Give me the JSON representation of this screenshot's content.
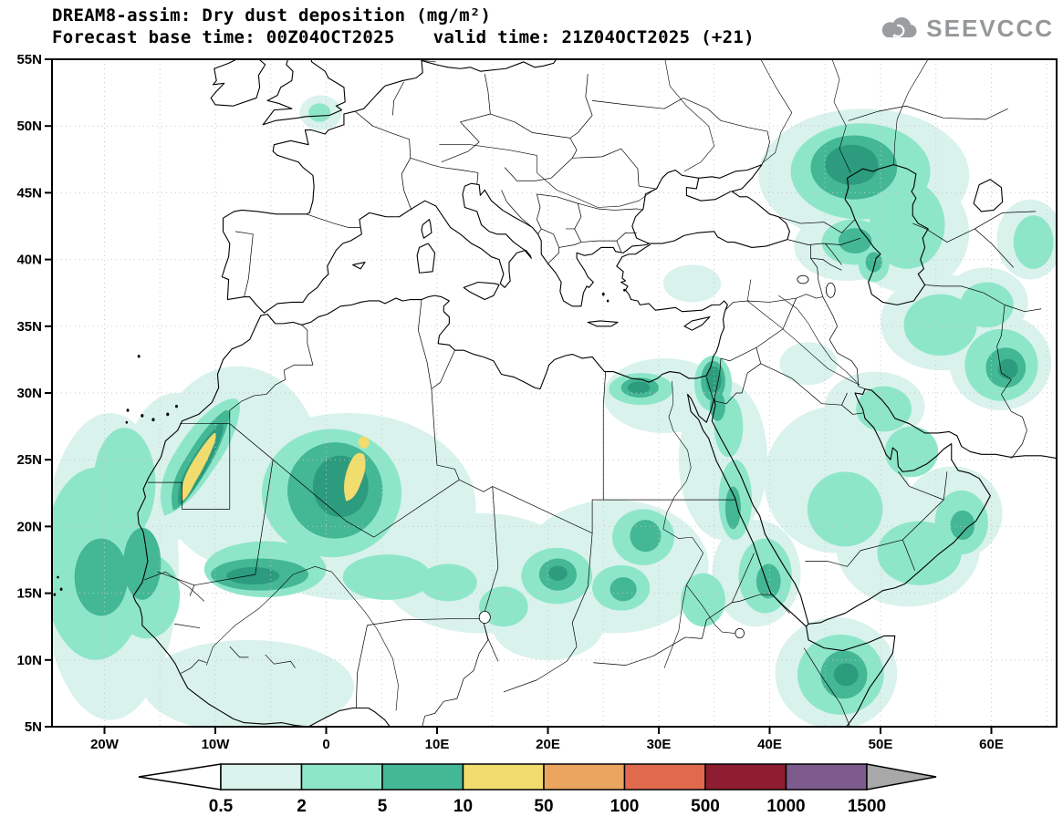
{
  "header": {
    "title_line1": "DREAM8-assim: Dry dust deposition (mg/m²)",
    "forecast_label": "Forecast base time: 00Z04OCT2025",
    "valid_label": "valid time: 21Z04OCT2025 (+21)",
    "logo_text": "SEEVCCC"
  },
  "map": {
    "lat_labels": [
      "55N",
      "50N",
      "45N",
      "40N",
      "35N",
      "30N",
      "25N",
      "20N",
      "15N",
      "10N",
      "5N"
    ],
    "lon_labels": [
      "20W",
      "10W",
      "0",
      "10E",
      "20E",
      "30E",
      "40E",
      "50E",
      "60E"
    ]
  },
  "chart_data": {
    "type": "heatmap",
    "title": "DREAM8-assim: Dry dust deposition (mg/m²)",
    "forecast_base_time": "00Z04OCT2025",
    "valid_time": "21Z04OCT2025 (+21)",
    "units": "mg/m²",
    "xlabel": "longitude",
    "ylabel": "latitude",
    "x_range_deg": [
      -24.7,
      65.9
    ],
    "y_range_deg": [
      5,
      55
    ],
    "grid": "dotted, 5 degree",
    "legend_position": "bottom colorbar with arrow ends",
    "colorbar": {
      "levels": [
        "0.5",
        "2",
        "5",
        "10",
        "50",
        "100",
        "500",
        "1000",
        "1500"
      ],
      "below_min_color": "#ffffff",
      "interval_colors": [
        "#d9f2ec",
        "#8ee6c9",
        "#44b795",
        "#f1dc6e",
        "#eaa55e",
        "#df6a4e",
        "#8e1d31",
        "#7d5b8c"
      ],
      "above_max_color": "#a8a8a8"
    },
    "regions_depicted": [
      {
        "area": "Atlantic off Mauritania/Senegal (25W-15W, 10-25N)",
        "level_mg_m2": "2-10"
      },
      {
        "area": "Western Sahara / Morocco coastal band (16W-8W, 20-29N)",
        "level_mg_m2": "10-50 yellow core"
      },
      {
        "area": "Central Algeria / N Mali (8W-8E, 17-28N)",
        "level_mg_m2": "10-50 yellow core"
      },
      {
        "area": "Sahel band (17W-10E, 15-17N)",
        "level_mg_m2": "5-10"
      },
      {
        "area": "Sudan / S Egypt patches (18E-30E, 13-20N)",
        "level_mg_m2": "5-10"
      },
      {
        "area": "Nile delta / N Egypt (28E-32E, 30-31N)",
        "level_mg_m2": "5-10"
      },
      {
        "area": "Israel / Jordan (34E-36.5E, 29-32.5N)",
        "level_mg_m2": "5-10"
      },
      {
        "area": "Red Sea and coasts (34E-43E, 12-28N)",
        "level_mg_m2": "2-5"
      },
      {
        "area": "S Arabian peninsula / Yemen / Oman (44E-58E, 15-22N)",
        "level_mg_m2": "2-5"
      },
      {
        "area": "Persian Gulf (48E-56E, 24-29N)",
        "level_mg_m2": "0.5-5"
      },
      {
        "area": "NW Kazakhstan / N Caspian (42E-55E, 43-50N)",
        "level_mg_m2": "5-10 core"
      },
      {
        "area": "Azerbaijan / W Caspian coast (46E-50E, 39-42.5N)",
        "level_mg_m2": "5-10"
      },
      {
        "area": "E Iran / Afghanistan border (58E-64E, 30-34N)",
        "level_mg_m2": "5-10"
      },
      {
        "area": "NE Iran / Turkmenistan (55E-61E, 34-38N)",
        "level_mg_m2": "2-5"
      },
      {
        "area": "N Somalia / Gulf of Aden (44E-50E, 6-11N)",
        "level_mg_m2": "5-10"
      },
      {
        "area": "English Channel spot (1W-1E, 50-52N)",
        "level_mg_m2": "0.5-2"
      }
    ]
  }
}
